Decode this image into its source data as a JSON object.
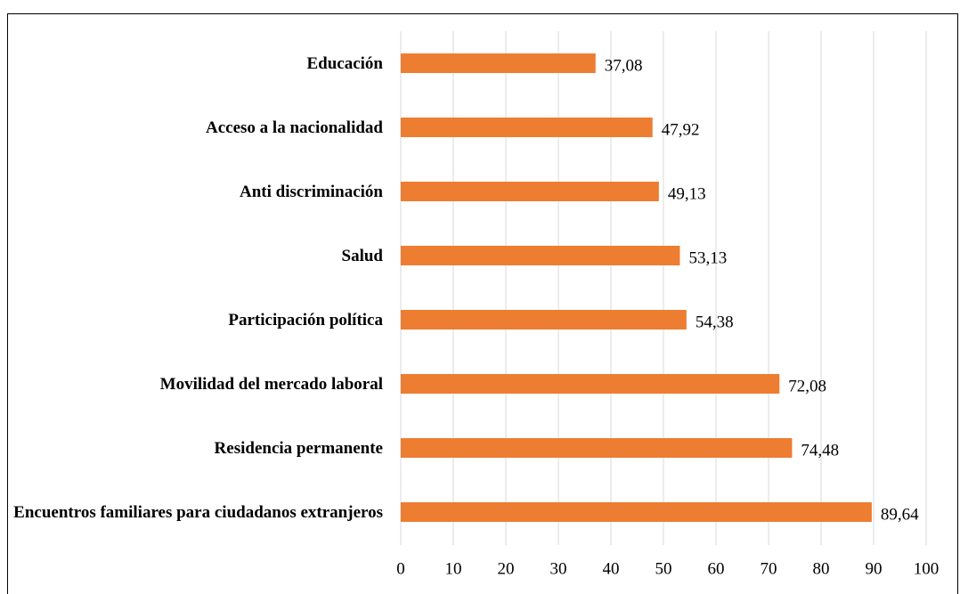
{
  "chart_data": {
    "type": "bar",
    "orientation": "horizontal",
    "categories": [
      "Educación",
      "Acceso a la nacionalidad",
      "Anti discriminación",
      "Salud",
      "Participación política",
      "Movilidad del mercado laboral",
      "Residencia permanente",
      "Encuentros familiares para ciudadanos extranjeros"
    ],
    "values": [
      37.08,
      47.92,
      49.13,
      53.13,
      54.38,
      72.08,
      74.48,
      89.64
    ],
    "value_labels": [
      "37,08",
      "47,92",
      "49,13",
      "53,13",
      "54,38",
      "72,08",
      "74,48",
      "89,64"
    ],
    "color": "#ed7d31",
    "xlim": [
      0,
      100
    ],
    "xticks": [
      0,
      10,
      20,
      30,
      40,
      50,
      60,
      70,
      80,
      90,
      100
    ],
    "grid": true
  }
}
